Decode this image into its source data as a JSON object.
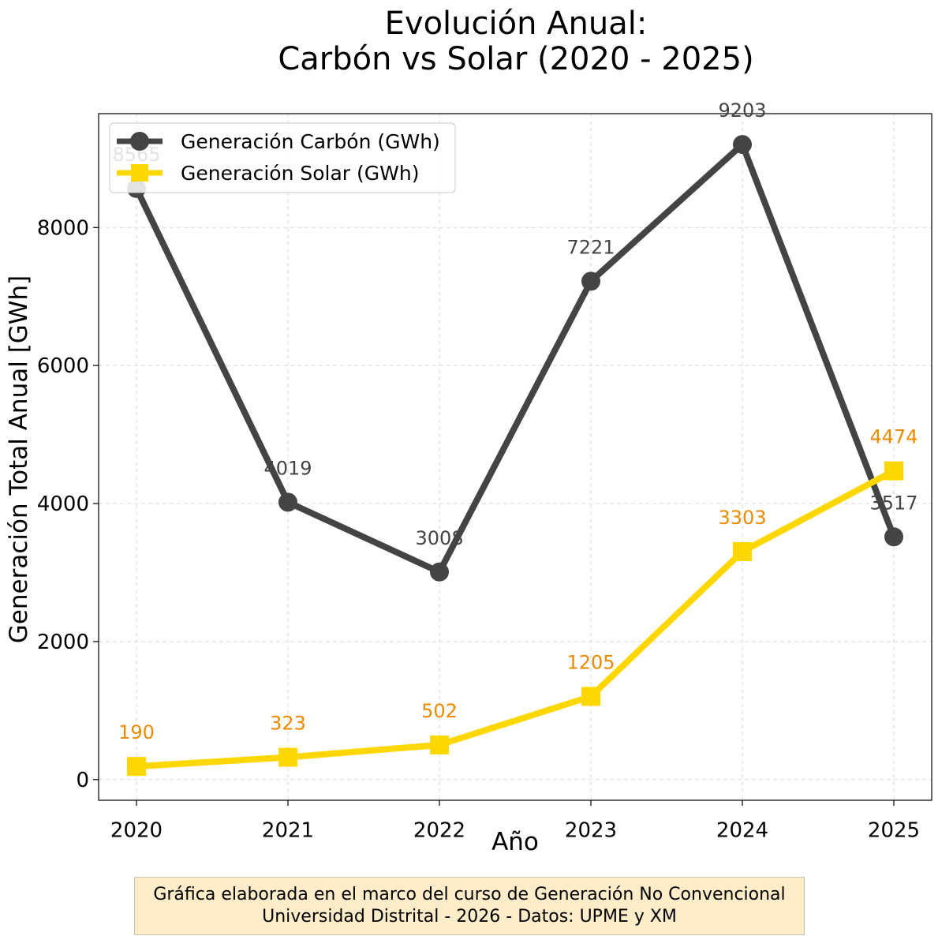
{
  "title_lines": [
    "Evolución Anual:",
    "Carbón vs Solar (2020 - 2025)"
  ],
  "chart_data": {
    "type": "line",
    "title": "Evolución Anual: Carbón vs Solar (2020 - 2025)",
    "xlabel": "Año",
    "ylabel": "Generación Total Anual [GWh]",
    "x": [
      2020,
      2021,
      2022,
      2023,
      2024,
      2025
    ],
    "x_tick_labels": [
      "2020",
      "2021",
      "2022",
      "2023",
      "2024",
      "2025"
    ],
    "xlim": [
      2019.75,
      2025.25
    ],
    "y_ticks": [
      0,
      2000,
      4000,
      6000,
      8000
    ],
    "y_tick_labels": [
      "0",
      "2000",
      "4000",
      "6000",
      "8000"
    ],
    "ylim": [
      -300,
      9650
    ],
    "grid": true,
    "legend_position": "top-left",
    "series": [
      {
        "name": "Generación Carbón (GWh)",
        "color": "#444444",
        "label_color": "#444444",
        "marker": "circle",
        "values": [
          8565,
          4019,
          3008,
          7221,
          9203,
          3517
        ],
        "data_labels": [
          "8565",
          "4019",
          "3008",
          "7221",
          "9203",
          "3517"
        ]
      },
      {
        "name": "Generación Solar (GWh)",
        "color": "#ffd700",
        "label_color": "#ee8a00",
        "marker": "square",
        "values": [
          190,
          323,
          502,
          1205,
          3303,
          4474
        ],
        "data_labels": [
          "190",
          "323",
          "502",
          "1205",
          "3303",
          "4474"
        ]
      }
    ]
  },
  "footer": {
    "line1": "Gráfica elaborada en el marco del curso de Generación No Convencional",
    "line2": "Universidad Distrital - 2026 - Datos: UPME y XM"
  }
}
